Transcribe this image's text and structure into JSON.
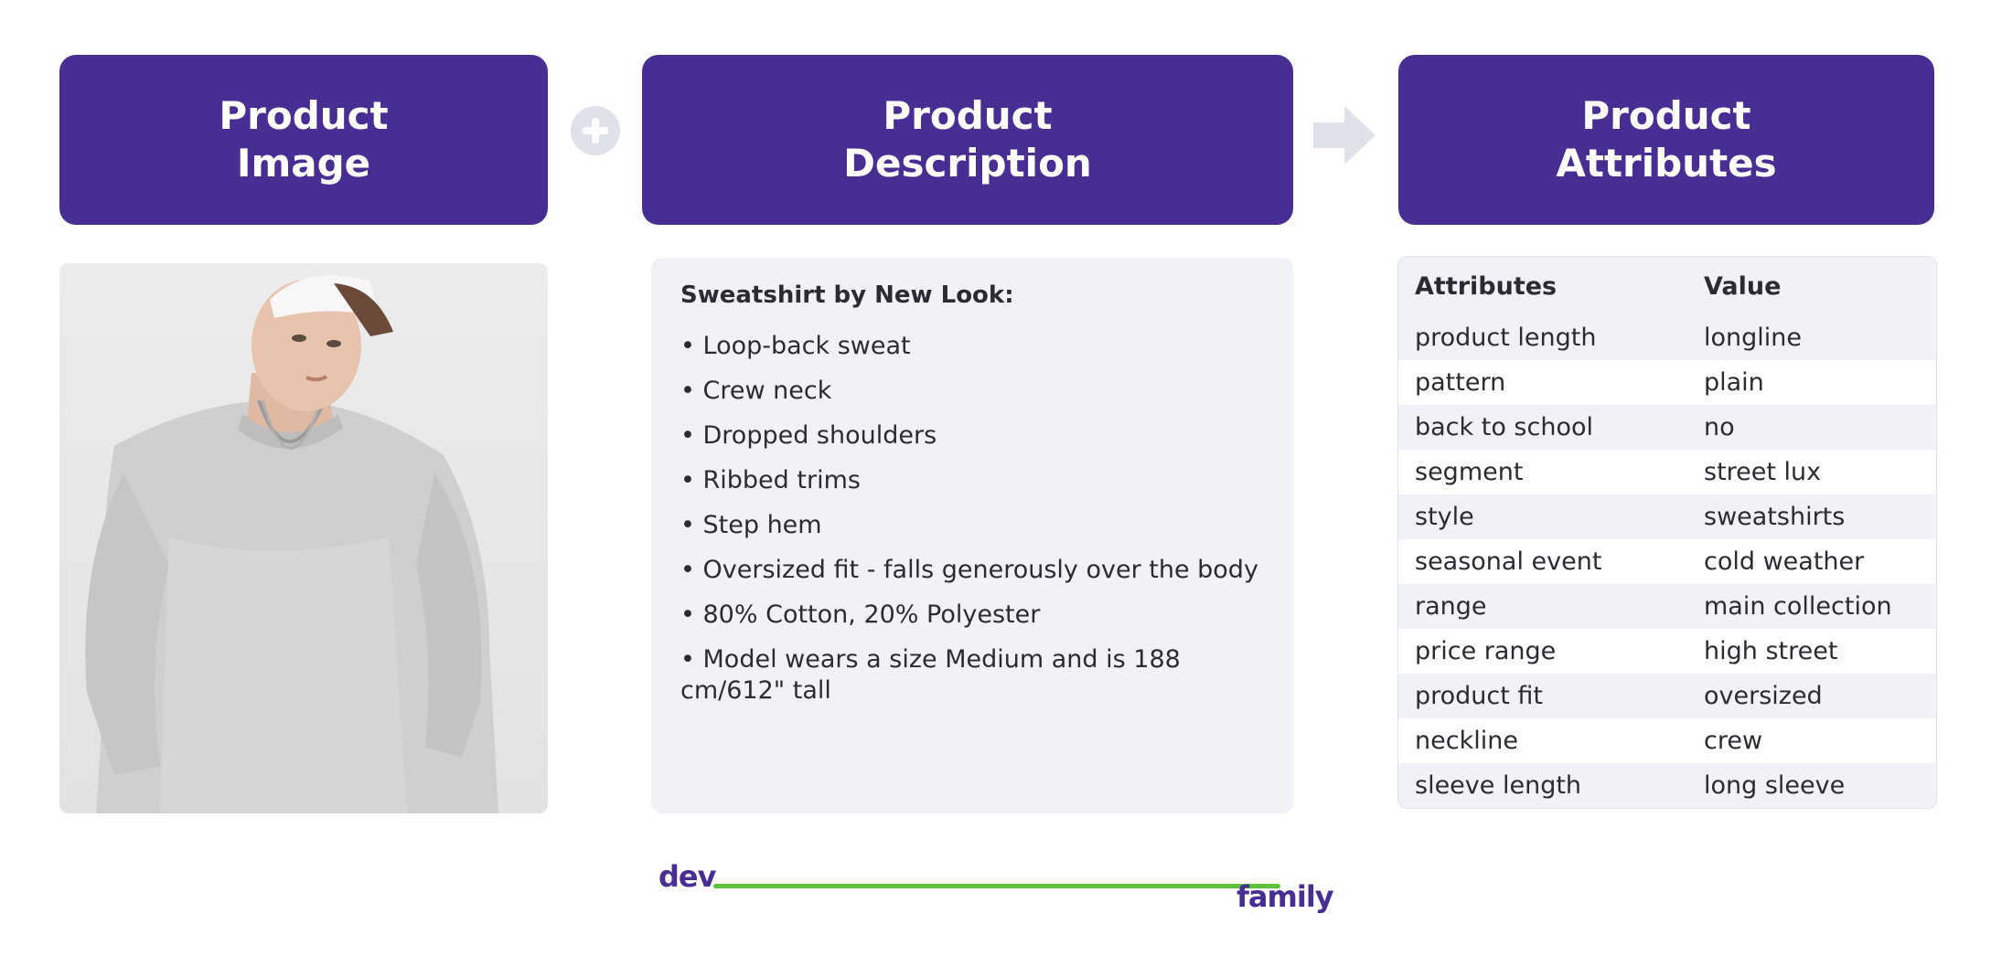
{
  "headers": {
    "image": {
      "line1": "Product",
      "line2": "Image"
    },
    "description": {
      "line1": "Product",
      "line2": "Description"
    },
    "attributes": {
      "line1": "Product",
      "line2": "Attributes"
    }
  },
  "description": {
    "title": "Sweatshirt by New Look:",
    "items": [
      "• Loop-back sweat",
      "• Crew neck",
      "• Dropped shoulders",
      "• Ribbed trims",
      "• Step hem",
      "• Oversized fit - falls generously over the body",
      "• 80% Cotton, 20% Polyester",
      "• Model wears a size Medium and is 188 cm/612\" tall"
    ]
  },
  "attributes_table": {
    "header": {
      "attribute": "Attributes",
      "value": "Value"
    },
    "rows": [
      {
        "attribute": "product length",
        "value": "longline"
      },
      {
        "attribute": "pattern",
        "value": "plain"
      },
      {
        "attribute": "back to school",
        "value": "no"
      },
      {
        "attribute": "segment",
        "value": "street lux"
      },
      {
        "attribute": "style",
        "value": "sweatshirts"
      },
      {
        "attribute": "seasonal event",
        "value": "cold weather"
      },
      {
        "attribute": "range",
        "value": "main collection"
      },
      {
        "attribute": "price range",
        "value": "high street"
      },
      {
        "attribute": "product fit",
        "value": "oversized"
      },
      {
        "attribute": "neckline",
        "value": "crew"
      },
      {
        "attribute": "sleeve length",
        "value": "long sleeve"
      }
    ]
  },
  "logo": {
    "left": "dev",
    "right": "family"
  },
  "colors": {
    "header_bg": "#482e92",
    "panel_bg": "#f1f2f7",
    "operator": "#dfe2e8",
    "logo_line": "#5cc23c"
  }
}
